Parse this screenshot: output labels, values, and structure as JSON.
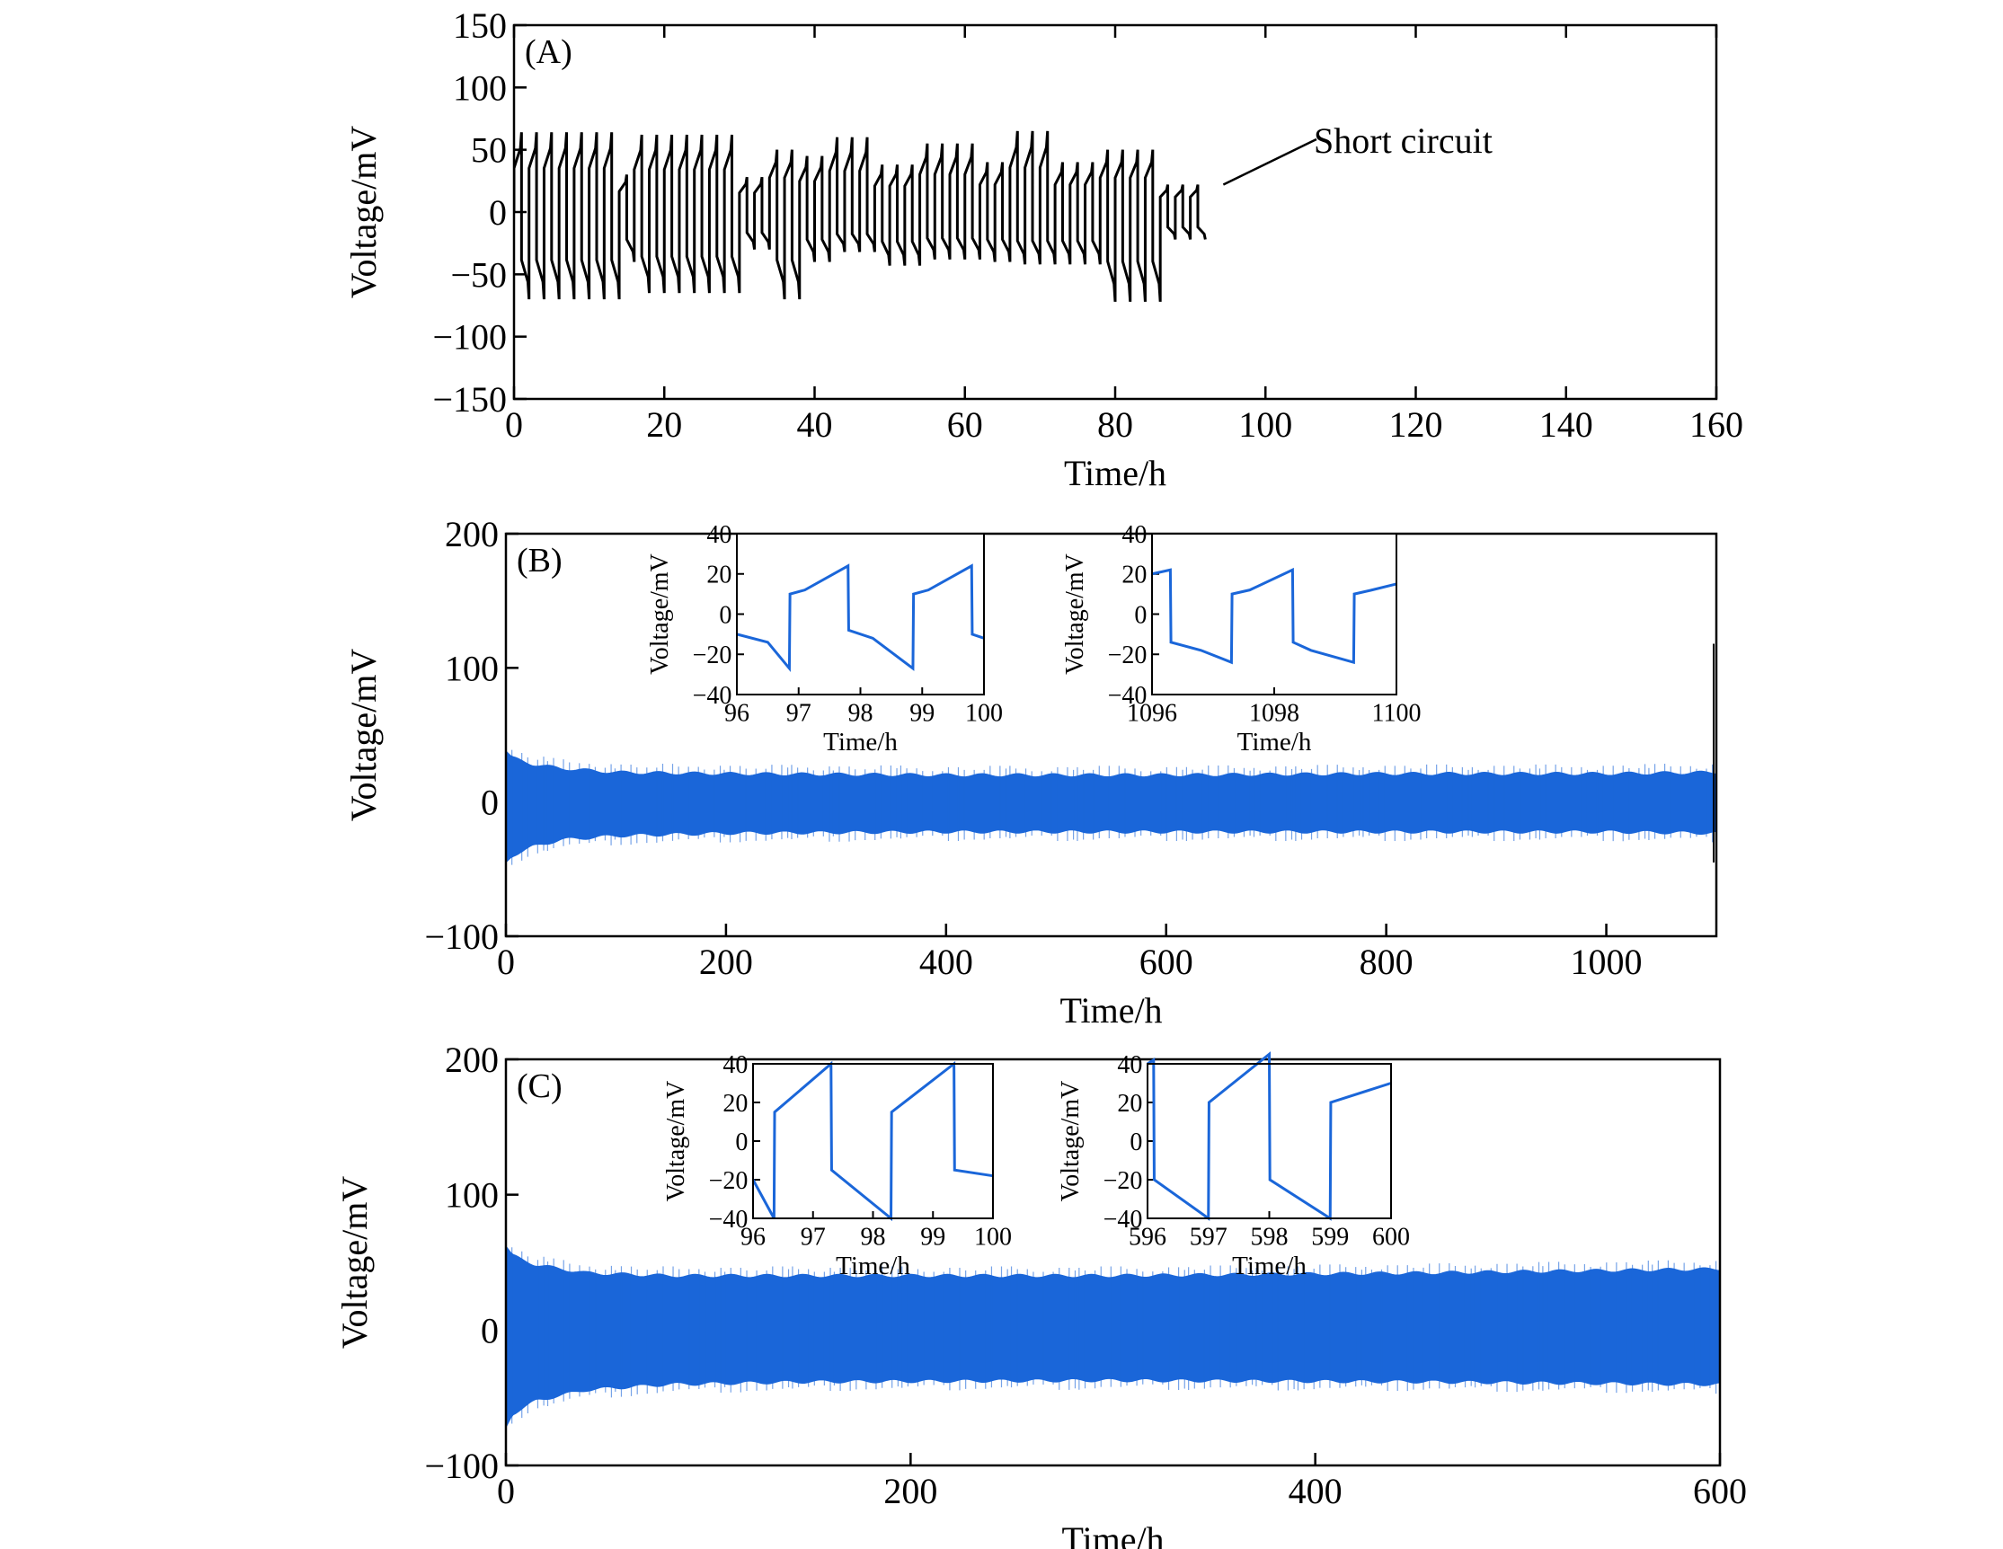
{
  "chart_data": [
    {
      "type": "line",
      "panel_label": "(A)",
      "title": "",
      "xlabel": "Time/h",
      "ylabel": "Voltage/mV",
      "xlim": [
        0,
        160
      ],
      "ylim": [
        -150,
        150
      ],
      "xticks": [
        0,
        20,
        40,
        60,
        80,
        100,
        120,
        140,
        160
      ],
      "yticks": [
        150,
        100,
        50,
        0,
        -50,
        -100,
        -150
      ],
      "ytick_labels": [
        "150",
        "100",
        "50",
        "0",
        "−50",
        "−100",
        "−150"
      ],
      "annotation": {
        "text": "Short circuit",
        "x": 92,
        "y": 22
      },
      "series": [
        {
          "name": "voltage",
          "color": "#000000",
          "cycle_hours": 2,
          "end_hours": 92,
          "segments": [
            {
              "t0": 0,
              "t1": 14,
              "high": 64,
              "low": -70
            },
            {
              "t0": 14,
              "t1": 16,
              "high": 30,
              "low": -40
            },
            {
              "t0": 16,
              "t1": 30,
              "high": 62,
              "low": -65
            },
            {
              "t0": 30,
              "t1": 34,
              "high": 28,
              "low": -30
            },
            {
              "t0": 34,
              "t1": 38,
              "high": 50,
              "low": -70
            },
            {
              "t0": 38,
              "t1": 42,
              "high": 45,
              "low": -40
            },
            {
              "t0": 42,
              "t1": 48,
              "high": 60,
              "low": -32
            },
            {
              "t0": 48,
              "t1": 54,
              "high": 38,
              "low": -43
            },
            {
              "t0": 54,
              "t1": 62,
              "high": 55,
              "low": -38
            },
            {
              "t0": 62,
              "t1": 66,
              "high": 40,
              "low": -40
            },
            {
              "t0": 66,
              "t1": 72,
              "high": 65,
              "low": -42
            },
            {
              "t0": 72,
              "t1": 78,
              "high": 40,
              "low": -42
            },
            {
              "t0": 78,
              "t1": 86,
              "high": 50,
              "low": -72
            },
            {
              "t0": 86,
              "t1": 92,
              "high": 22,
              "low": -22
            }
          ]
        }
      ]
    },
    {
      "type": "line",
      "panel_label": "(B)",
      "title": "",
      "xlabel": "Time/h",
      "ylabel": "Voltage/mV",
      "xlim": [
        0,
        1100
      ],
      "ylim": [
        -100,
        200
      ],
      "xticks": [
        0,
        200,
        400,
        600,
        800,
        1000
      ],
      "yticks": [
        200,
        100,
        0,
        -100
      ],
      "ytick_labels": [
        "200",
        "100",
        "0",
        "−100"
      ],
      "color": "#1a66d9",
      "envelope": {
        "t": [
          0,
          5,
          25,
          50,
          100,
          200,
          400,
          600,
          800,
          1000,
          1100
        ],
        "upper": [
          38,
          33,
          28,
          25,
          22,
          21,
          20,
          20,
          21,
          21,
          22
        ],
        "lower": [
          -45,
          -40,
          -33,
          -28,
          -25,
          -23,
          -22,
          -22,
          -22,
          -22,
          -23
        ]
      },
      "insets": [
        {
          "xlabel": "Time/h",
          "ylabel": "Voltage/mV",
          "xlim": [
            96,
            100
          ],
          "ylim": [
            -40,
            40
          ],
          "xticks": [
            96,
            97,
            98,
            99,
            100
          ],
          "yticks": [
            40,
            20,
            0,
            -20,
            -40
          ],
          "ytick_labels": [
            "40",
            "20",
            "0",
            "−20",
            "−40"
          ],
          "x": [
            96,
            96.5,
            96.85,
            96.86,
            97.1,
            97.8,
            97.81,
            98.2,
            98.85,
            98.86,
            99.1,
            99.8,
            99.81,
            100
          ],
          "y": [
            -10,
            -14,
            -27,
            10,
            12,
            24,
            -8,
            -12,
            -27,
            10,
            12,
            24,
            -10,
            -12
          ]
        },
        {
          "xlabel": "Time/h",
          "ylabel": "Voltage/mV",
          "xlim": [
            1096,
            1100
          ],
          "ylim": [
            -40,
            40
          ],
          "xticks": [
            1096,
            1098,
            1100
          ],
          "yticks": [
            40,
            20,
            0,
            -20,
            -40
          ],
          "ytick_labels": [
            "40",
            "20",
            "0",
            "−20",
            "−40"
          ],
          "x": [
            1096,
            1096.3,
            1096.31,
            1096.8,
            1097.3,
            1097.31,
            1097.6,
            1098.3,
            1098.31,
            1098.6,
            1099.3,
            1099.31,
            1099.6,
            1100
          ],
          "y": [
            20,
            22,
            -14,
            -18,
            -24,
            10,
            12,
            22,
            -14,
            -18,
            -24,
            10,
            12,
            15
          ]
        }
      ]
    },
    {
      "type": "line",
      "panel_label": "(C)",
      "title": "",
      "xlabel": "Time/h",
      "ylabel": "Voltage/mV",
      "xlim": [
        0,
        600
      ],
      "ylim": [
        -100,
        200
      ],
      "xticks": [
        0,
        200,
        400,
        600
      ],
      "yticks": [
        200,
        100,
        0,
        -100
      ],
      "ytick_labels": [
        "200",
        "100",
        "0",
        "−100"
      ],
      "color": "#1a66d9",
      "envelope": {
        "t": [
          0,
          3,
          15,
          40,
          80,
          150,
          300,
          450,
          600
        ],
        "upper": [
          62,
          55,
          48,
          42,
          40,
          40,
          40,
          42,
          45
        ],
        "lower": [
          -72,
          -62,
          -52,
          -44,
          -40,
          -38,
          -37,
          -38,
          -40
        ]
      },
      "insets": [
        {
          "xlabel": "Time/h",
          "ylabel": "Voltage/mV",
          "xlim": [
            96,
            100
          ],
          "ylim": [
            -40,
            40
          ],
          "xticks": [
            96,
            97,
            98,
            99,
            100
          ],
          "yticks": [
            40,
            20,
            0,
            -20,
            -40
          ],
          "ytick_labels": [
            "40",
            "20",
            "0",
            "−20",
            "−40"
          ],
          "x": [
            96,
            96.35,
            96.36,
            97.3,
            97.31,
            98.3,
            98.31,
            99.35,
            99.36,
            100
          ],
          "y": [
            -20,
            -40,
            15,
            40,
            -15,
            -40,
            15,
            40,
            -15,
            -18
          ]
        },
        {
          "xlabel": "Time/h",
          "ylabel": "Voltage/mV",
          "xlim": [
            596,
            600
          ],
          "ylim": [
            -40,
            40
          ],
          "xticks": [
            596,
            597,
            598,
            599,
            600
          ],
          "yticks": [
            40,
            20,
            0,
            -20,
            -40
          ],
          "ytick_labels": [
            "40",
            "20",
            "0",
            "−20",
            "−40"
          ],
          "x": [
            596,
            596.1,
            596.11,
            597.0,
            597.01,
            598.0,
            598.01,
            599.0,
            599.01,
            600
          ],
          "y": [
            40,
            42,
            -20,
            -40,
            20,
            45,
            -20,
            -40,
            20,
            30
          ]
        }
      ]
    }
  ]
}
